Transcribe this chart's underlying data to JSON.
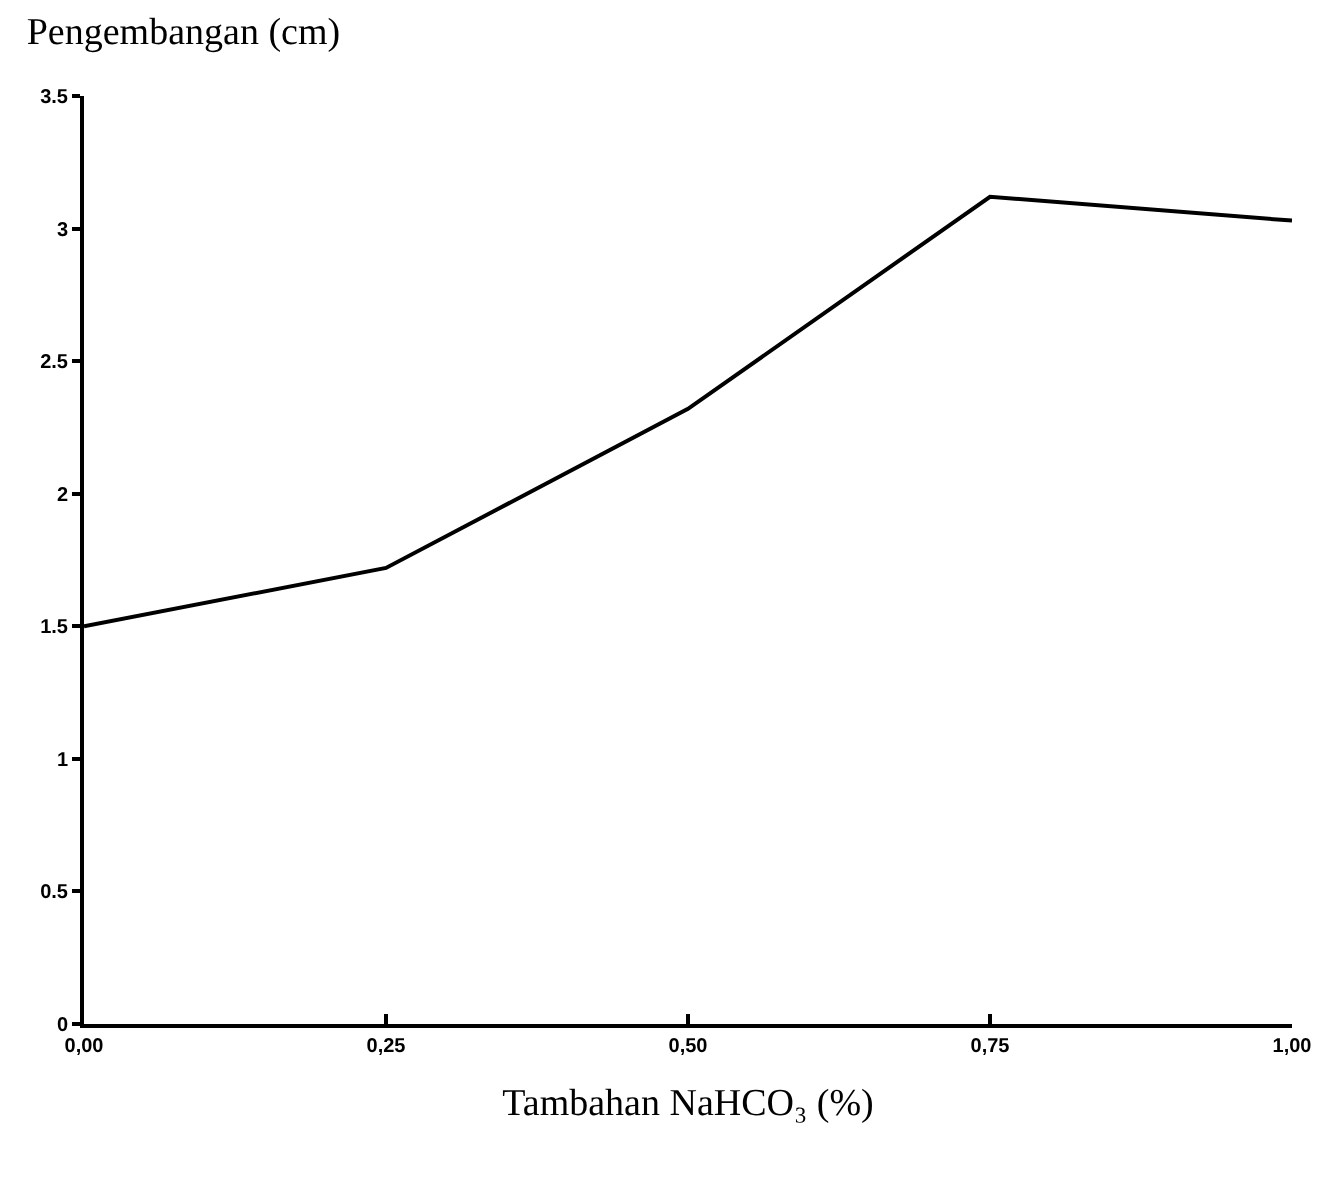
{
  "chart_data": {
    "type": "line",
    "title": "Pengembangan (cm)",
    "xlabel": "Tambahan NaHCO₃ (%)",
    "x": [
      0,
      0.25,
      0.5,
      0.75,
      1
    ],
    "series": [
      {
        "color": "#000000",
        "values": [
          1.5,
          1.72,
          2.32,
          3.12,
          3.03
        ]
      }
    ],
    "xlim": [
      0,
      1
    ],
    "xticks": [
      {
        "value": 0,
        "label": "0,00"
      },
      {
        "value": 0.25,
        "label": "0,25"
      },
      {
        "value": 0.5,
        "label": "0,50"
      },
      {
        "value": 0.75,
        "label": "0,75"
      },
      {
        "value": 1,
        "label": "1,00"
      }
    ],
    "ylim": [
      0,
      3.5
    ],
    "yticks": [
      0,
      0.5,
      1,
      1.5,
      2,
      2.5,
      3,
      3.5
    ],
    "grid": false,
    "marker": "none",
    "line_style": "solid"
  }
}
